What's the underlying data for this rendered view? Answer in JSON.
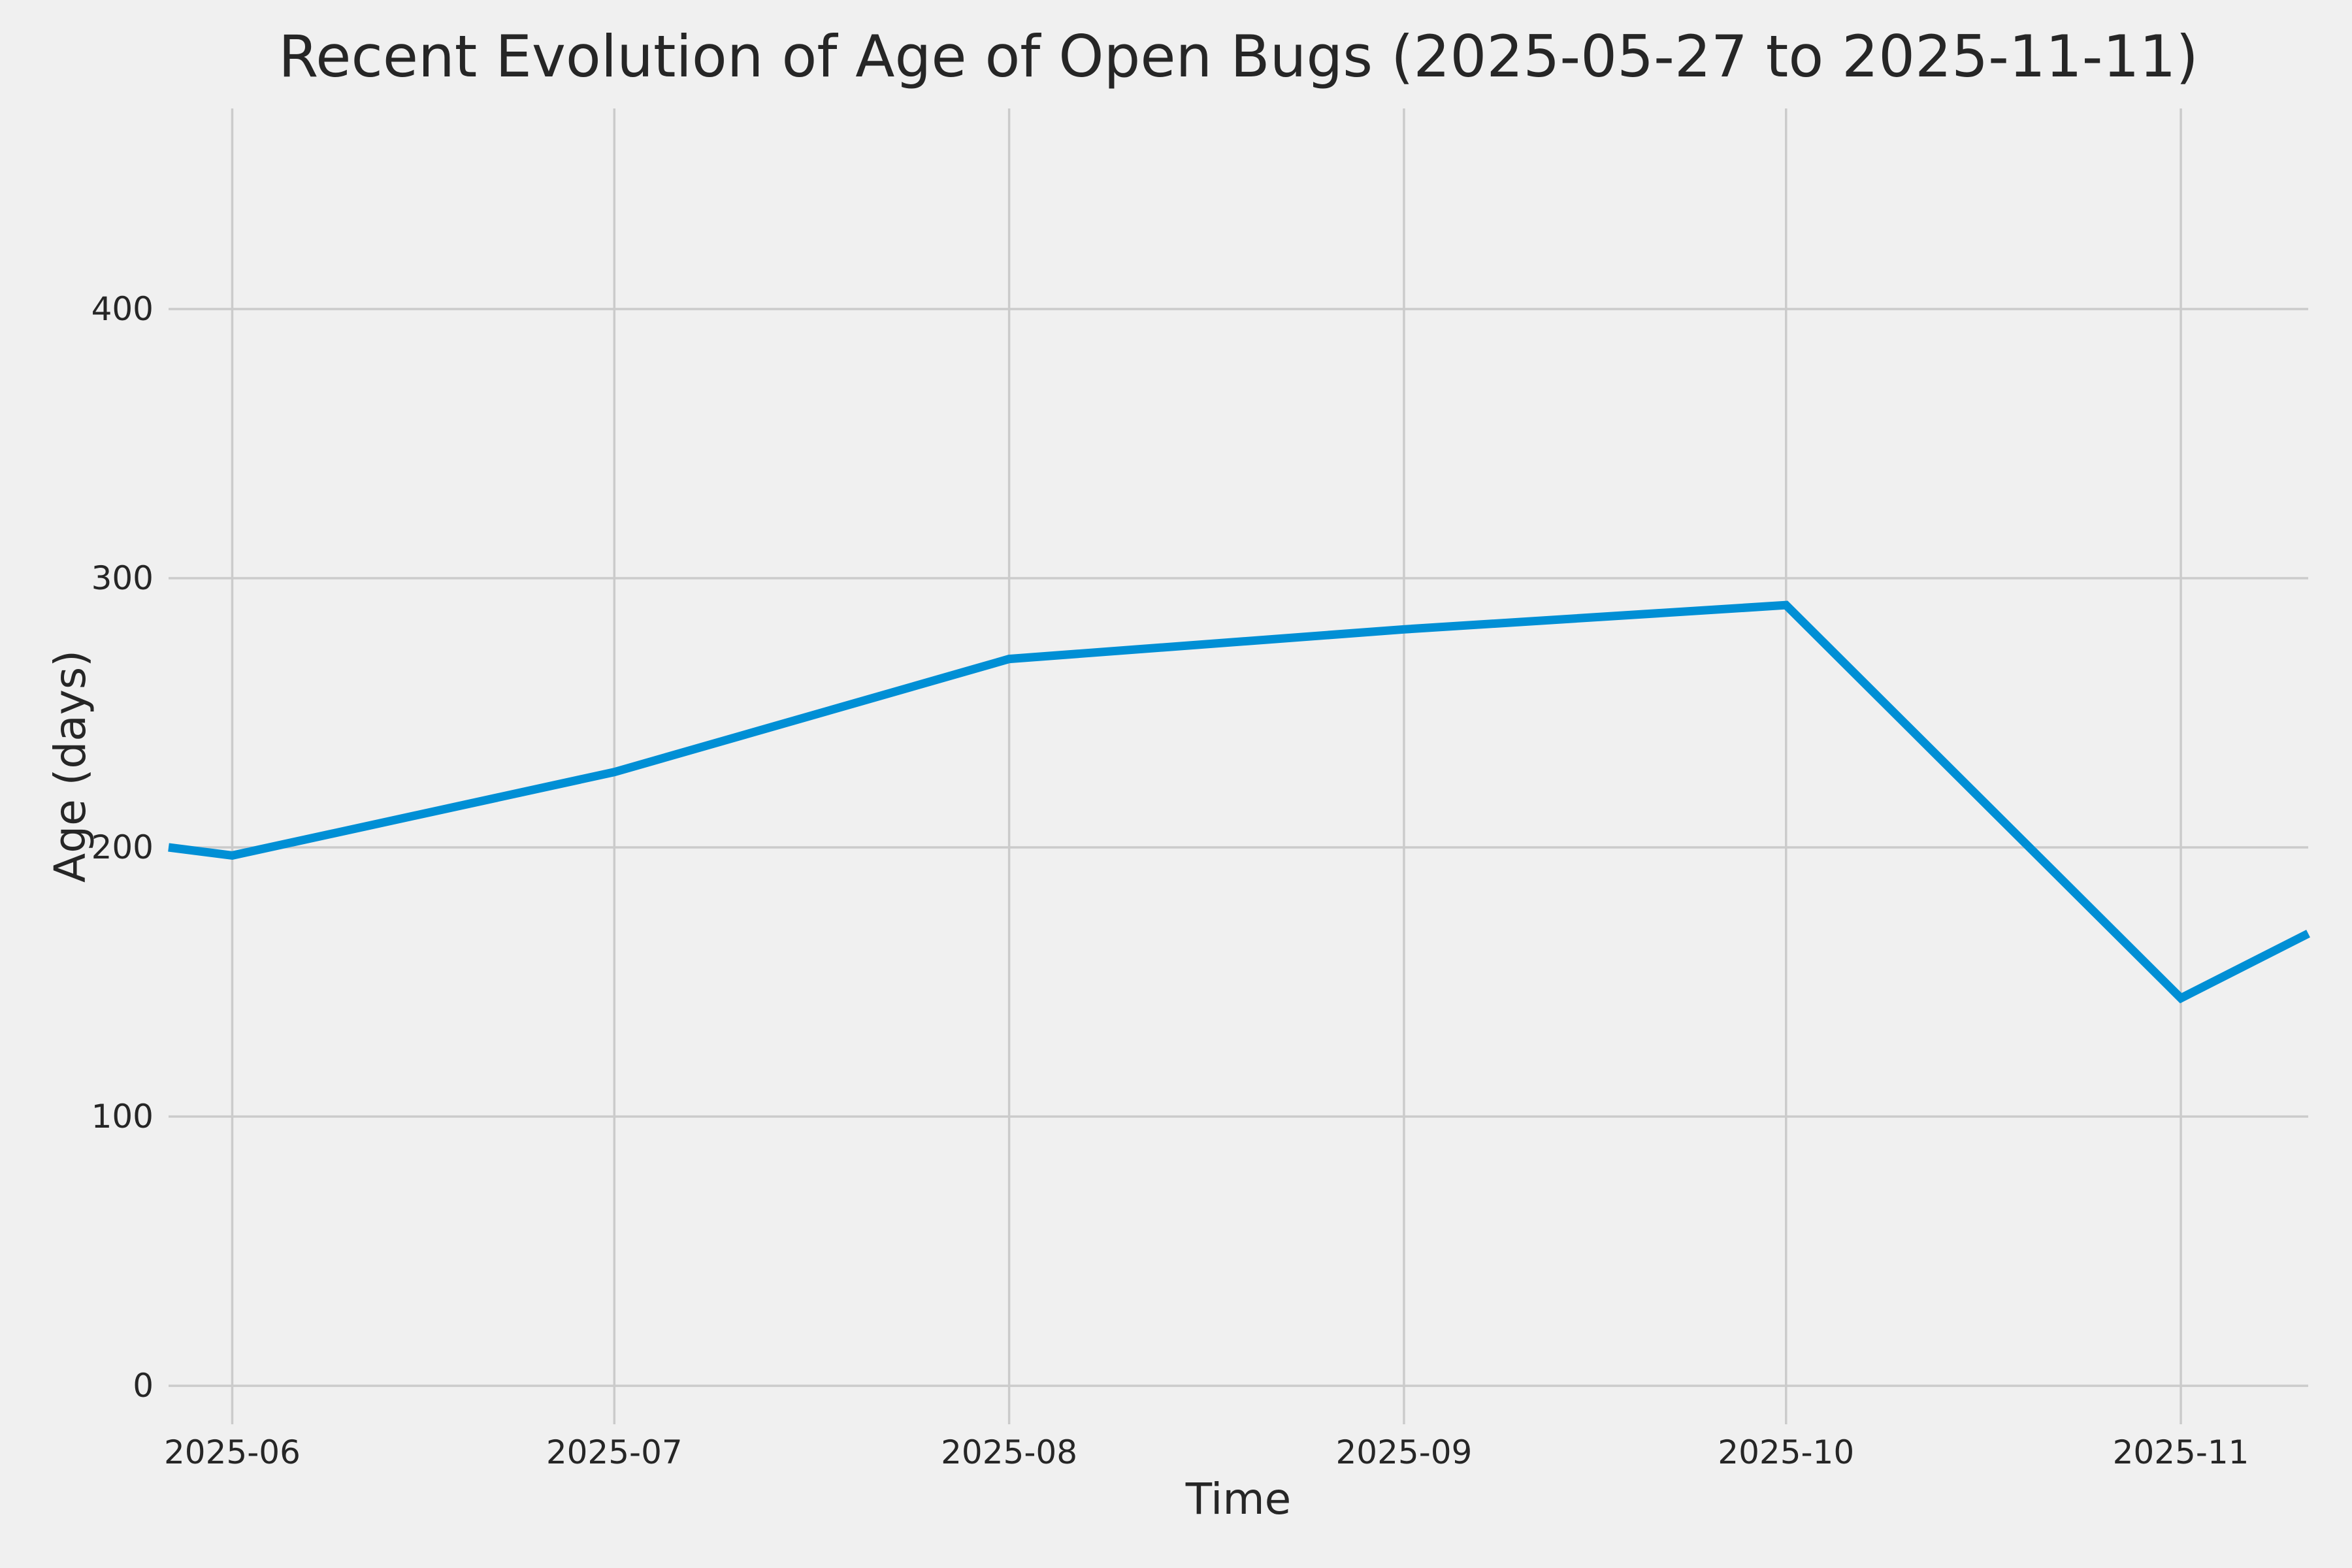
{
  "chart_data": {
    "type": "line",
    "title": "Recent Evolution of Age of Open Bugs (2025-05-27 to 2025-11-11)",
    "xlabel": "Time",
    "ylabel": "Age (days)",
    "x_tick_labels": [
      "2025-06",
      "2025-07",
      "2025-08",
      "2025-09",
      "2025-10",
      "2025-11"
    ],
    "x_tick_day_offsets": [
      5,
      35,
      66,
      97,
      127,
      158
    ],
    "y_ticks": [
      0,
      100,
      200,
      300,
      400
    ],
    "x_range_dates": [
      "2025-05-27",
      "2025-11-11"
    ],
    "x_range_days": [
      0,
      168
    ],
    "ylim": [
      -14.3,
      474.5
    ],
    "grid": true,
    "legend_position": "none",
    "series": [
      {
        "name": "Age of open bugs",
        "color": "#008fd5",
        "points": [
          {
            "date": "2025-05-27",
            "day": 0,
            "value": 200
          },
          {
            "date": "2025-06-01",
            "day": 5,
            "value": 197
          },
          {
            "date": "2025-07-01",
            "day": 35,
            "value": 228
          },
          {
            "date": "2025-08-01",
            "day": 66,
            "value": 270
          },
          {
            "date": "2025-09-01",
            "day": 97,
            "value": 281
          },
          {
            "date": "2025-10-01",
            "day": 127,
            "value": 290
          },
          {
            "date": "2025-11-01",
            "day": 158,
            "value": 144
          },
          {
            "date": "2025-11-11",
            "day": 168,
            "value": 168
          }
        ]
      }
    ],
    "colors": {
      "background": "#f0f0f0",
      "grid": "#cbcbcb",
      "text": "#262626",
      "line": "#008fd5"
    }
  }
}
